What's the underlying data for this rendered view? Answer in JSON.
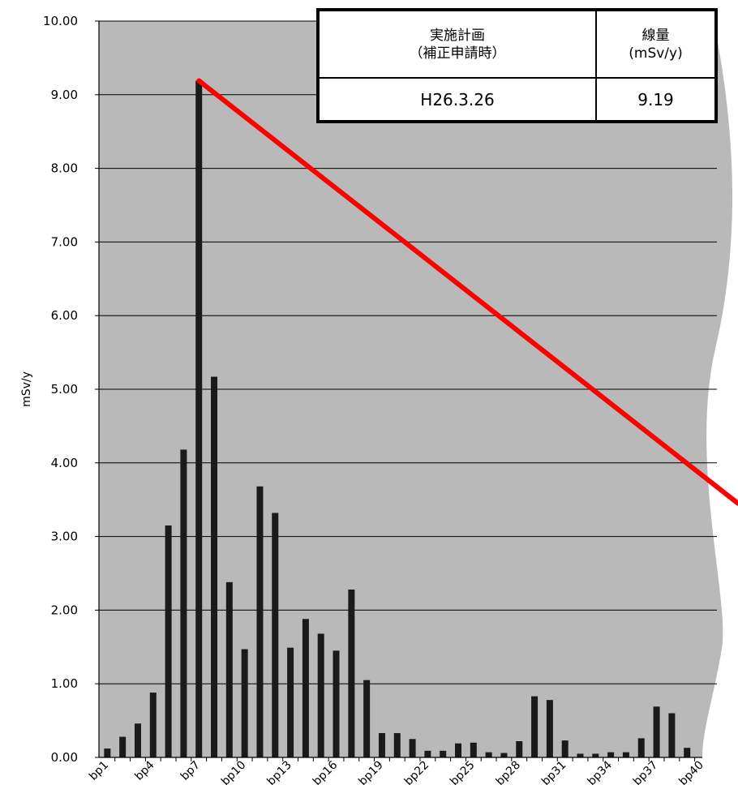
{
  "chart_data": {
    "type": "bar",
    "ylabel": "mSv/y",
    "ylim": [
      0,
      10
    ],
    "yticks": [
      "0.00",
      "1.00",
      "2.00",
      "3.00",
      "4.00",
      "5.00",
      "6.00",
      "7.00",
      "8.00",
      "9.00",
      "10.00"
    ],
    "categories": [
      "bp1",
      "bp2",
      "bp3",
      "bp4",
      "bp5",
      "bp6",
      "bp7",
      "bp8",
      "bp9",
      "bp10",
      "bp11",
      "bp12",
      "bp13",
      "bp14",
      "bp15",
      "bp16",
      "bp17",
      "bp18",
      "bp19",
      "bp20",
      "bp21",
      "bp22",
      "bp23",
      "bp24",
      "bp25",
      "bp26",
      "bp27",
      "bp28",
      "bp29",
      "bp30",
      "bp31",
      "bp32",
      "bp33",
      "bp34",
      "bp35",
      "bp36",
      "bp37",
      "bp38",
      "bp39",
      "bp40"
    ],
    "tick_labels": [
      "bp1",
      "bp4",
      "bp7",
      "bp10",
      "bp13",
      "bp16",
      "bp19",
      "bp22",
      "bp25",
      "bp28",
      "bp31",
      "bp34",
      "bp37",
      "bp40"
    ],
    "values": [
      0.12,
      0.28,
      0.46,
      0.88,
      3.15,
      4.18,
      9.19,
      5.17,
      2.38,
      1.47,
      3.68,
      3.32,
      1.49,
      1.88,
      1.68,
      1.45,
      2.28,
      1.05,
      0.33,
      0.33,
      0.25,
      0.09,
      0.09,
      0.19,
      0.2,
      0.07,
      0.06,
      0.22,
      0.83,
      0.78,
      0.23,
      0.05,
      0.05,
      0.07,
      0.07,
      0.26,
      0.69,
      0.6,
      0.13,
      0.0
    ],
    "grid": true,
    "bar_color": "#1a1a1a",
    "plot_background": "#b9b9b9",
    "trend_line_color": "#ff0000"
  },
  "info_table": {
    "header_col1_line1": "実施計画",
    "header_col1_line2": "（補正申請時）",
    "header_col2_line1": "線量",
    "header_col2_line2": "(mSv/y)",
    "row_col1": "H26.3.26",
    "row_col2": "9.19"
  }
}
